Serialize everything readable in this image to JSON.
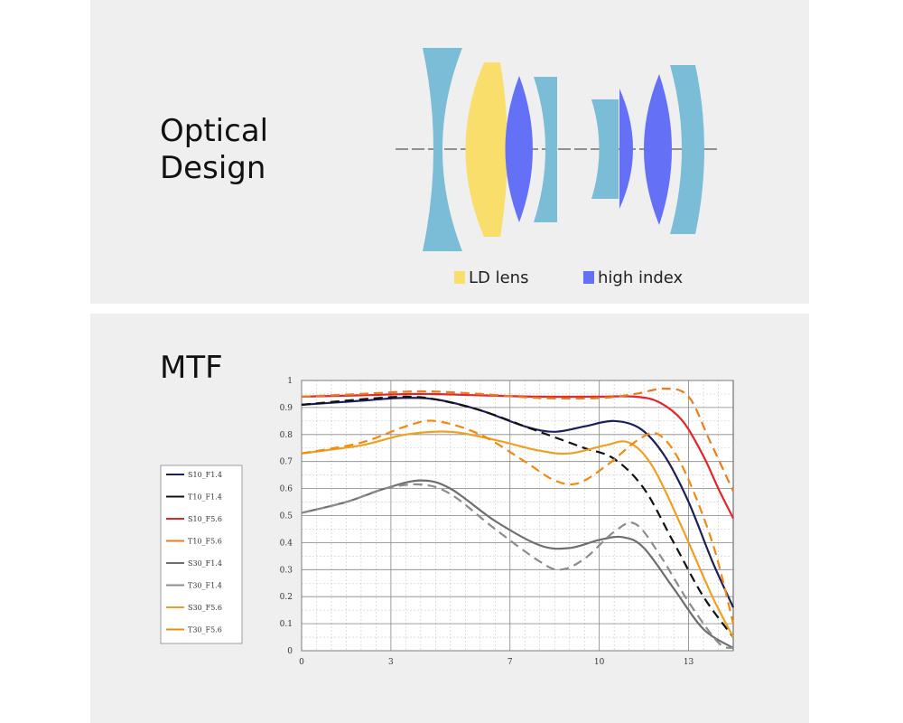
{
  "optical": {
    "title_line1": "Optical",
    "title_line2": "Design",
    "legend": [
      {
        "label": "LD lens",
        "color": "#f9de6b"
      },
      {
        "label": "high index",
        "color": "#6470f6"
      }
    ],
    "colors": {
      "standard": "#7bbdd6",
      "ld": "#f9de6b",
      "high_index": "#6470f6"
    }
  },
  "chart_data": {
    "type": "line",
    "title": "MTF",
    "xlabel": "",
    "ylabel": "",
    "xlim": [
      0,
      14.5
    ],
    "ylim": [
      0,
      1
    ],
    "grid": true,
    "x_ticks": [
      0,
      3,
      7,
      10,
      13
    ],
    "y_ticks": [
      0,
      0.1,
      0.2,
      0.3,
      0.4,
      0.5,
      0.6,
      0.7,
      0.8,
      0.9,
      1
    ],
    "x_tick_labels": [
      "0",
      "3",
      "7",
      "10",
      "13"
    ],
    "y_tick_labels": [
      "0",
      "0.1",
      "0.2",
      "0.3",
      "0.4",
      "0.5",
      "0.6",
      "0.7",
      "0.8",
      "0.9",
      "1"
    ],
    "legend_position": "left",
    "series": [
      {
        "name": "S10_F1.4",
        "color": "#1c1f5c",
        "dash": false,
        "points": [
          [
            0,
            0.91
          ],
          [
            2,
            0.925
          ],
          [
            3.3,
            0.935
          ],
          [
            4.5,
            0.93
          ],
          [
            6,
            0.89
          ],
          [
            7.5,
            0.83
          ],
          [
            8.5,
            0.81
          ],
          [
            9.5,
            0.83
          ],
          [
            10.5,
            0.85
          ],
          [
            11.4,
            0.82
          ],
          [
            12.2,
            0.72
          ],
          [
            13,
            0.55
          ],
          [
            13.8,
            0.33
          ],
          [
            14.5,
            0.16
          ]
        ]
      },
      {
        "name": "T10_F1.4",
        "color": "#111111",
        "dash": true,
        "points": [
          [
            0,
            0.91
          ],
          [
            2,
            0.93
          ],
          [
            3.5,
            0.94
          ],
          [
            4.5,
            0.93
          ],
          [
            6,
            0.89
          ],
          [
            7.5,
            0.83
          ],
          [
            8.5,
            0.79
          ],
          [
            9.5,
            0.75
          ],
          [
            10.5,
            0.71
          ],
          [
            11.5,
            0.6
          ],
          [
            12.5,
            0.4
          ],
          [
            13.5,
            0.2
          ],
          [
            14.5,
            0.05
          ]
        ]
      },
      {
        "name": "S10_F5.6",
        "color": "#e3262a",
        "dash": false,
        "points": [
          [
            0,
            0.94
          ],
          [
            2,
            0.945
          ],
          [
            4,
            0.95
          ],
          [
            6,
            0.945
          ],
          [
            8,
            0.94
          ],
          [
            10,
            0.94
          ],
          [
            11.2,
            0.94
          ],
          [
            12,
            0.92
          ],
          [
            12.8,
            0.85
          ],
          [
            13.5,
            0.72
          ],
          [
            14,
            0.6
          ],
          [
            14.5,
            0.49
          ]
        ]
      },
      {
        "name": "T10_F5.6",
        "color": "#ec7a1e",
        "dash": true,
        "points": [
          [
            0,
            0.94
          ],
          [
            2,
            0.95
          ],
          [
            4,
            0.96
          ],
          [
            6,
            0.95
          ],
          [
            8,
            0.935
          ],
          [
            10,
            0.935
          ],
          [
            11.2,
            0.95
          ],
          [
            12.2,
            0.97
          ],
          [
            13,
            0.94
          ],
          [
            13.7,
            0.78
          ],
          [
            14.5,
            0.59
          ]
        ]
      },
      {
        "name": "S30_F1.4",
        "color": "#6e6e6e",
        "dash": false,
        "points": [
          [
            0,
            0.51
          ],
          [
            1.5,
            0.55
          ],
          [
            2.8,
            0.6
          ],
          [
            4,
            0.63
          ],
          [
            5,
            0.6
          ],
          [
            6.5,
            0.48
          ],
          [
            8,
            0.39
          ],
          [
            9,
            0.38
          ],
          [
            10,
            0.41
          ],
          [
            10.8,
            0.42
          ],
          [
            11.5,
            0.38
          ],
          [
            12.5,
            0.23
          ],
          [
            13.5,
            0.08
          ],
          [
            14.5,
            0.01
          ]
        ]
      },
      {
        "name": "T30_F1.4",
        "color": "#8c8c8c",
        "dash": true,
        "points": [
          [
            0,
            0.51
          ],
          [
            1.5,
            0.55
          ],
          [
            2.8,
            0.6
          ],
          [
            4,
            0.615
          ],
          [
            5,
            0.58
          ],
          [
            6.5,
            0.45
          ],
          [
            8,
            0.33
          ],
          [
            8.7,
            0.3
          ],
          [
            9.5,
            0.34
          ],
          [
            10.5,
            0.44
          ],
          [
            11.2,
            0.47
          ],
          [
            12,
            0.36
          ],
          [
            13,
            0.18
          ],
          [
            14,
            0.03
          ],
          [
            14.5,
            0.01
          ]
        ]
      },
      {
        "name": "S30_F5.6",
        "color": "#f0a020",
        "dash": false,
        "points": [
          [
            0,
            0.73
          ],
          [
            2,
            0.76
          ],
          [
            3.5,
            0.8
          ],
          [
            5,
            0.81
          ],
          [
            6.5,
            0.78
          ],
          [
            8,
            0.74
          ],
          [
            9,
            0.73
          ],
          [
            10.2,
            0.76
          ],
          [
            11,
            0.77
          ],
          [
            11.8,
            0.68
          ],
          [
            12.8,
            0.45
          ],
          [
            13.8,
            0.2
          ],
          [
            14.5,
            0.05
          ]
        ]
      },
      {
        "name": "T30_F5.6",
        "color": "#f08a10",
        "dash": true,
        "points": [
          [
            0,
            0.73
          ],
          [
            2,
            0.77
          ],
          [
            3.5,
            0.83
          ],
          [
            4.5,
            0.85
          ],
          [
            6,
            0.8
          ],
          [
            7.5,
            0.7
          ],
          [
            8.5,
            0.63
          ],
          [
            9.3,
            0.62
          ],
          [
            10.3,
            0.69
          ],
          [
            11.3,
            0.78
          ],
          [
            12,
            0.8
          ],
          [
            12.8,
            0.68
          ],
          [
            13.8,
            0.4
          ],
          [
            14.5,
            0.1
          ]
        ]
      }
    ]
  }
}
